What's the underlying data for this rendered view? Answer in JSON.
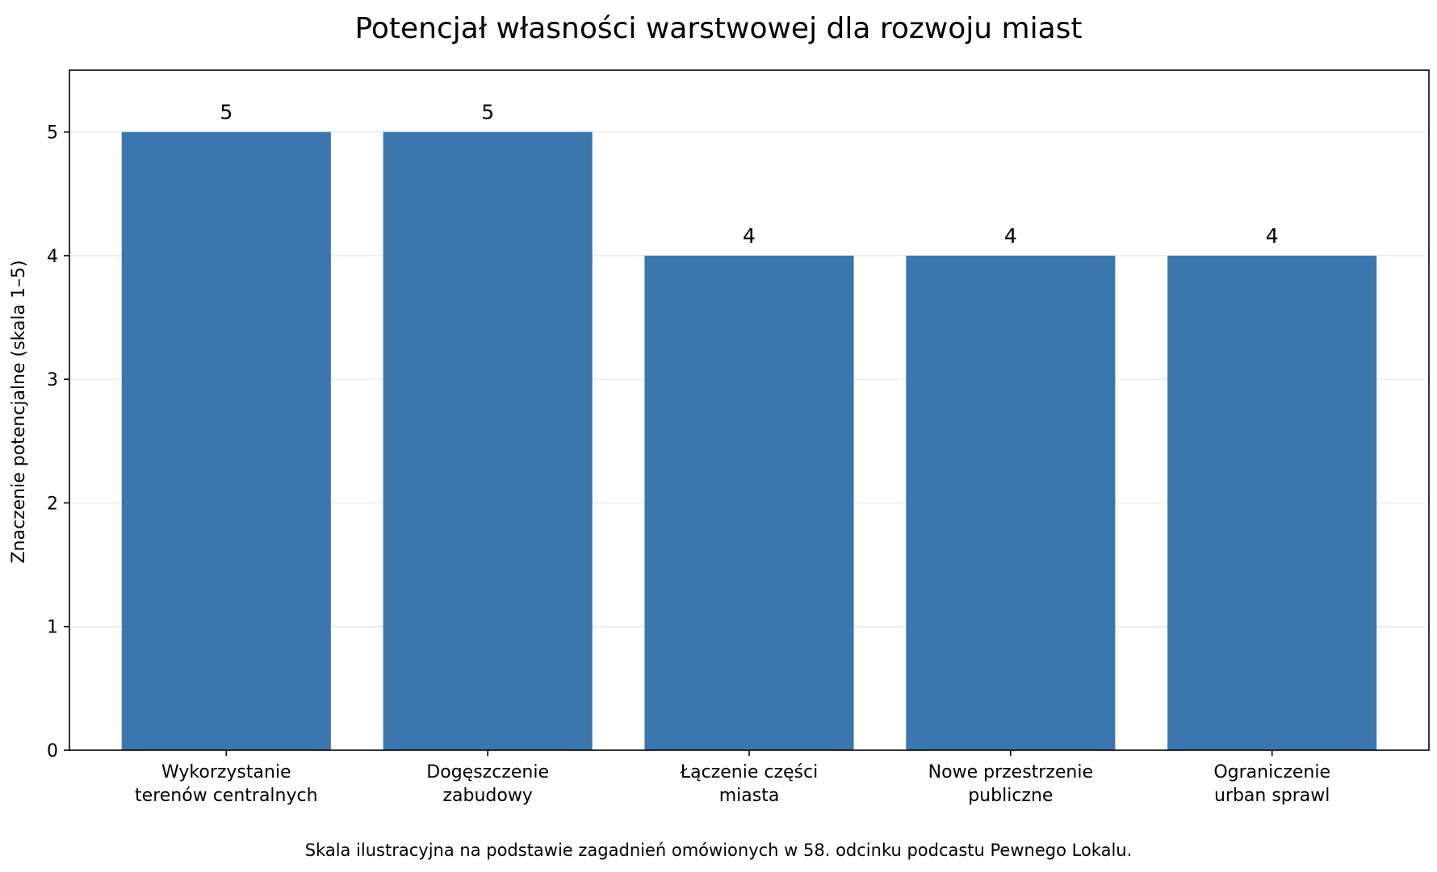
{
  "chart_data": {
    "type": "bar",
    "title": "Potencjał własności warstwowej dla rozwoju miast",
    "xlabel": "",
    "ylabel": "Znaczenie potencjalne (skala 1–5)",
    "categories": [
      [
        "Wykorzystanie",
        "terenów centralnych"
      ],
      [
        "Dogęszczenie",
        "zabudowy"
      ],
      [
        "Łączenie części",
        "miasta"
      ],
      [
        "Nowe przestrzenie",
        "publiczne"
      ],
      [
        "Ograniczenie",
        "urban sprawl"
      ]
    ],
    "values": [
      5,
      5,
      4,
      4,
      4
    ],
    "data_labels": [
      "5",
      "5",
      "4",
      "4",
      "4"
    ],
    "ylim": [
      0,
      5.5
    ],
    "yticks": [
      0,
      1,
      2,
      3,
      4,
      5
    ],
    "grid": "horizontal",
    "bar_color": "#3b76ae",
    "gridline_color": "#e6e6e6",
    "caption": "Skala ilustracyjna na podstawie zagadnień omówionych w 58. odcinku podcastu Pewnego Lokalu."
  }
}
